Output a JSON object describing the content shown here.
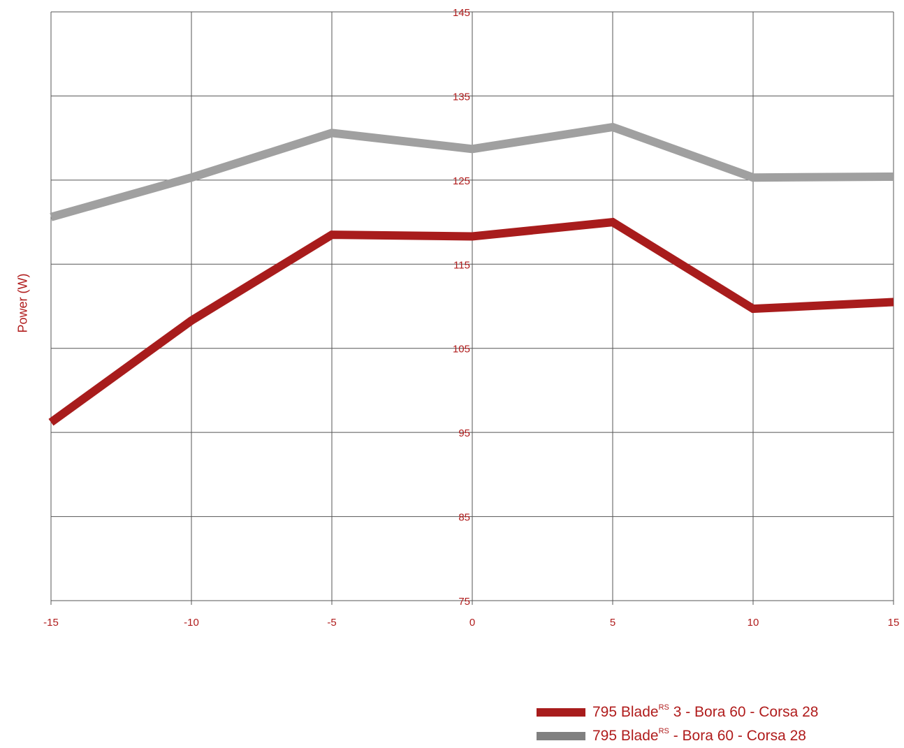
{
  "chart_data": {
    "type": "line",
    "xlabel": "",
    "ylabel": "Power (W)",
    "xlim": [
      -15,
      15
    ],
    "ylim": [
      75,
      145
    ],
    "x_ticks": [
      -15,
      -10,
      -5,
      0,
      5,
      10,
      15
    ],
    "y_ticks": [
      75,
      85,
      95,
      105,
      115,
      125,
      135,
      145
    ],
    "grid": true,
    "legend_position": "bottom-right",
    "series": [
      {
        "name_main": "795 Blade",
        "name_sup": "RS",
        "name_rest": " 3 - Bora 60 - Corsa 28",
        "color": "#a81c1c",
        "x": [
          -15,
          -10,
          -5,
          0,
          5,
          10,
          15
        ],
        "y": [
          96.2,
          108.3,
          118.5,
          118.3,
          120.0,
          109.7,
          110.5
        ]
      },
      {
        "name_main": "795 Blade",
        "name_sup": "RS",
        "name_rest": " - Bora 60 - Corsa 28",
        "color": "#a0a0a0",
        "legend_color": "#808080",
        "x": [
          -15,
          -10,
          -5,
          0,
          5,
          10,
          15
        ],
        "y": [
          120.6,
          125.3,
          130.6,
          128.7,
          131.3,
          125.3,
          125.4
        ]
      }
    ]
  }
}
